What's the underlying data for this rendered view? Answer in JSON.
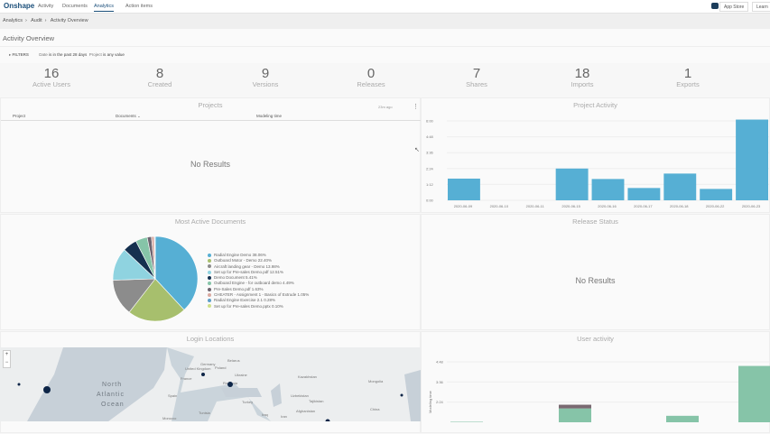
{
  "nav": {
    "logo": "Onshape",
    "items": [
      "Activity",
      "Documents",
      "Analytics",
      "Action items"
    ],
    "active": "Analytics",
    "app_store": "App Store",
    "learn": "Learn"
  },
  "breadcrumb": [
    "Analytics",
    "Audit",
    "Activity Overview"
  ],
  "page_title": "Activity Overview",
  "filters": {
    "label": "FILTERS",
    "date_field": "Date",
    "date_value": "is in the past 28 days",
    "project_field": "Project",
    "project_value": "is any value"
  },
  "kpis": [
    {
      "value": "16",
      "label": "Active Users"
    },
    {
      "value": "8",
      "label": "Created"
    },
    {
      "value": "9",
      "label": "Versions"
    },
    {
      "value": "0",
      "label": "Releases"
    },
    {
      "value": "7",
      "label": "Shares"
    },
    {
      "value": "18",
      "label": "Imports"
    },
    {
      "value": "1",
      "label": "Exports"
    }
  ],
  "projects": {
    "title": "Projects",
    "age": "23m ago",
    "columns": [
      "Project",
      "Documents",
      "Modeling time"
    ],
    "empty": "No Results"
  },
  "release_status": {
    "title": "Release Status",
    "empty": "No Results"
  },
  "login_locations": {
    "title": "Login Locations",
    "zoom_in": "+",
    "zoom_out": "−",
    "labels": [
      "North",
      "Atlantic",
      "Ocean",
      "United Kingdom",
      "Germany",
      "Poland",
      "Belarus",
      "Ukraine",
      "France",
      "Spain",
      "Romania",
      "Turkey",
      "Kazakhstan",
      "Uzbekistan",
      "Tajikistan",
      "Afghanistan",
      "Mongolia",
      "China",
      "Iran",
      "Iraq",
      "Tunisia",
      "Morocco"
    ]
  },
  "chart_data": [
    {
      "type": "bar",
      "title": "Project Activity",
      "categories": [
        "2020-06-09",
        "2020-06-10",
        "2020-06-11",
        "2020-06-15",
        "2020-06-16",
        "2020-06-17",
        "2020-06-18",
        "2020-06-22",
        "2020-06-23"
      ],
      "values": [
        1.64,
        0,
        0,
        2.4,
        1.61,
        0.93,
        2.02,
        0.86,
        6.1
      ],
      "yticks": [
        "0:00",
        "1:12",
        "2:24",
        "3:36",
        "4:48",
        "6:00"
      ],
      "ylim": [
        0,
        6
      ],
      "color": "#56afd4",
      "grid": true
    },
    {
      "type": "pie",
      "title": "Most Active Documents",
      "legend": "right",
      "slices": [
        {
          "name": "Radial Engine Demo",
          "value": 38.06,
          "label": "Radial Engine Demo 38.06%",
          "color": "#56afd4"
        },
        {
          "name": "Outboard Motor - Demo",
          "value": 22.4,
          "label": "Outboard Motor - Demo 22.40%",
          "color": "#a7bf6d"
        },
        {
          "name": "Aircraft landing gear - Demo",
          "value": 13.98,
          "label": "Aircraft landing gear - Demo 13.98%",
          "color": "#8c8c8c"
        },
        {
          "name": "Set up for Pre-sales Demo.pdf",
          "value": 12.51,
          "label": "Set up for Pre-sales Demo.pdf 12.51%",
          "color": "#8fd3e0"
        },
        {
          "name": "Demo Document",
          "value": 5.41,
          "label": "Demo Document 5.41%",
          "color": "#15304f"
        },
        {
          "name": "Outboard Engine - for outboard demo",
          "value": 4.49,
          "label": "Outboard Engine - for outboard demo 4.49%",
          "color": "#86c4a8"
        },
        {
          "name": "Pre-Sales Demo.pdf",
          "value": 1.63,
          "label": "Pre-Sales Demo.pdf 1.63%",
          "color": "#6e6470"
        },
        {
          "name": "CHEATER - Assignment 1 - Basics of Extrude",
          "value": 1.05,
          "label": "CHEATER - Assignment 1 - Basics of Extrude 1.05%",
          "color": "#d9a9a0"
        },
        {
          "name": "Radial Engine Exercise 2.1",
          "value": 0.28,
          "label": "Radial Engine Exercise 2.1 0.28%",
          "color": "#5e9fc9"
        },
        {
          "name": "Set up for Pre-sales Demo.pptx",
          "value": 0.1,
          "label": "Set up for Pre-sales Demo.pptx 0.10%",
          "color": "#cfe08a"
        }
      ]
    },
    {
      "type": "bar",
      "title": "User activity",
      "ylabel": "Modeling time",
      "yticks": [
        "2:24",
        "3:36",
        "4:48"
      ],
      "series": [
        {
          "color": "#86c4a8",
          "values": [
            0.05,
            1.5,
            0.7,
            6.1
          ]
        },
        {
          "color": "#7a6a72",
          "values": [
            0,
            0.4,
            0,
            0
          ]
        }
      ]
    }
  ]
}
